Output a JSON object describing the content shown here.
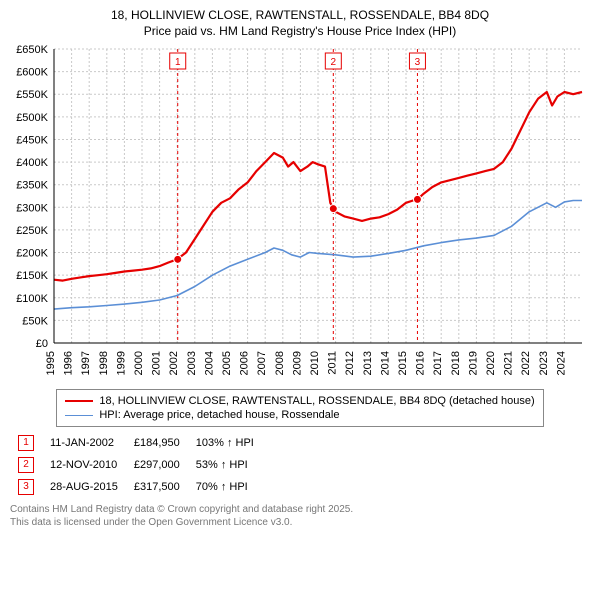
{
  "title_line1": "18, HOLLINVIEW CLOSE, RAWTENSTALL, ROSSENDALE, BB4 8DQ",
  "title_line2": "Price paid vs. HM Land Registry's House Price Index (HPI)",
  "chart": {
    "type": "line",
    "background_color": "#ffffff",
    "grid_color": "#c9c9c9",
    "axis_color": "#000000",
    "label_fontsize": 11,
    "x": {
      "min": 1995,
      "max": 2025,
      "ticks": [
        1995,
        1996,
        1997,
        1998,
        1999,
        2000,
        2001,
        2002,
        2003,
        2004,
        2005,
        2006,
        2007,
        2008,
        2009,
        2010,
        2011,
        2012,
        2013,
        2014,
        2015,
        2016,
        2017,
        2018,
        2019,
        2020,
        2021,
        2022,
        2023,
        2024
      ]
    },
    "y": {
      "min": 0,
      "max": 650000,
      "ticks": [
        0,
        50000,
        100000,
        150000,
        200000,
        250000,
        300000,
        350000,
        400000,
        450000,
        500000,
        550000,
        600000,
        650000
      ],
      "tick_labels": [
        "£0",
        "£50K",
        "£100K",
        "£150K",
        "£200K",
        "£250K",
        "£300K",
        "£350K",
        "£400K",
        "£450K",
        "£500K",
        "£550K",
        "£600K",
        "£650K"
      ]
    },
    "series": [
      {
        "name": "18, HOLLINVIEW CLOSE, RAWTENSTALL, ROSSENDALE, BB4 8DQ (detached house)",
        "color": "#e60000",
        "line_width": 2.2,
        "data": [
          [
            1995,
            140000
          ],
          [
            1995.5,
            138000
          ],
          [
            1996,
            142000
          ],
          [
            1996.5,
            145000
          ],
          [
            1997,
            148000
          ],
          [
            1997.5,
            150000
          ],
          [
            1998,
            152000
          ],
          [
            1998.5,
            155000
          ],
          [
            1999,
            158000
          ],
          [
            1999.5,
            160000
          ],
          [
            2000,
            162000
          ],
          [
            2000.5,
            165000
          ],
          [
            2001,
            170000
          ],
          [
            2001.5,
            178000
          ],
          [
            2002,
            185000
          ],
          [
            2002.5,
            200000
          ],
          [
            2003,
            230000
          ],
          [
            2003.5,
            260000
          ],
          [
            2004,
            290000
          ],
          [
            2004.5,
            310000
          ],
          [
            2005,
            320000
          ],
          [
            2005.5,
            340000
          ],
          [
            2006,
            355000
          ],
          [
            2006.5,
            380000
          ],
          [
            2007,
            400000
          ],
          [
            2007.5,
            420000
          ],
          [
            2008,
            410000
          ],
          [
            2008.3,
            390000
          ],
          [
            2008.6,
            400000
          ],
          [
            2009,
            380000
          ],
          [
            2009.4,
            390000
          ],
          [
            2009.7,
            400000
          ],
          [
            2010,
            395000
          ],
          [
            2010.4,
            390000
          ],
          [
            2010.7,
            310000
          ],
          [
            2010.88,
            297000
          ],
          [
            2011,
            290000
          ],
          [
            2011.5,
            280000
          ],
          [
            2012,
            275000
          ],
          [
            2012.5,
            270000
          ],
          [
            2013,
            275000
          ],
          [
            2013.5,
            278000
          ],
          [
            2014,
            285000
          ],
          [
            2014.5,
            295000
          ],
          [
            2015,
            310000
          ],
          [
            2015.4,
            315000
          ],
          [
            2015.65,
            317500
          ],
          [
            2016,
            330000
          ],
          [
            2016.5,
            345000
          ],
          [
            2017,
            355000
          ],
          [
            2017.5,
            360000
          ],
          [
            2018,
            365000
          ],
          [
            2018.5,
            370000
          ],
          [
            2019,
            375000
          ],
          [
            2019.5,
            380000
          ],
          [
            2020,
            385000
          ],
          [
            2020.5,
            400000
          ],
          [
            2021,
            430000
          ],
          [
            2021.5,
            470000
          ],
          [
            2022,
            510000
          ],
          [
            2022.5,
            540000
          ],
          [
            2023,
            555000
          ],
          [
            2023.3,
            525000
          ],
          [
            2023.6,
            545000
          ],
          [
            2024,
            555000
          ],
          [
            2024.5,
            550000
          ],
          [
            2025,
            555000
          ]
        ]
      },
      {
        "name": "HPI: Average price, detached house, Rossendale",
        "color": "#5b8fd6",
        "line_width": 1.6,
        "data": [
          [
            1995,
            75000
          ],
          [
            1996,
            78000
          ],
          [
            1997,
            80000
          ],
          [
            1998,
            83000
          ],
          [
            1999,
            86000
          ],
          [
            2000,
            90000
          ],
          [
            2001,
            95000
          ],
          [
            2002,
            105000
          ],
          [
            2003,
            125000
          ],
          [
            2004,
            150000
          ],
          [
            2005,
            170000
          ],
          [
            2006,
            185000
          ],
          [
            2007,
            200000
          ],
          [
            2007.5,
            210000
          ],
          [
            2008,
            205000
          ],
          [
            2008.5,
            195000
          ],
          [
            2009,
            190000
          ],
          [
            2009.5,
            200000
          ],
          [
            2010,
            198000
          ],
          [
            2011,
            195000
          ],
          [
            2012,
            190000
          ],
          [
            2013,
            192000
          ],
          [
            2014,
            198000
          ],
          [
            2015,
            205000
          ],
          [
            2016,
            215000
          ],
          [
            2017,
            222000
          ],
          [
            2018,
            228000
          ],
          [
            2019,
            232000
          ],
          [
            2020,
            238000
          ],
          [
            2021,
            258000
          ],
          [
            2022,
            290000
          ],
          [
            2023,
            310000
          ],
          [
            2023.5,
            300000
          ],
          [
            2024,
            312000
          ],
          [
            2024.5,
            315000
          ],
          [
            2025,
            315000
          ]
        ]
      }
    ],
    "events": [
      {
        "n": "1",
        "x": 2002.03,
        "color": "#e60000"
      },
      {
        "n": "2",
        "x": 2010.87,
        "color": "#e60000"
      },
      {
        "n": "3",
        "x": 2015.65,
        "color": "#e60000"
      }
    ],
    "event_points": [
      {
        "x": 2002.03,
        "y": 185000,
        "color": "#e60000"
      },
      {
        "x": 2010.87,
        "y": 297000,
        "color": "#e60000"
      },
      {
        "x": 2015.65,
        "y": 317500,
        "color": "#e60000"
      }
    ]
  },
  "legend": [
    {
      "label": "18, HOLLINVIEW CLOSE, RAWTENSTALL, ROSSENDALE, BB4 8DQ (detached house)",
      "color": "#e60000",
      "width": 2.2
    },
    {
      "label": "HPI: Average price, detached house, Rossendale",
      "color": "#5b8fd6",
      "width": 1.6
    }
  ],
  "events_table": [
    {
      "n": "1",
      "date": "11-JAN-2002",
      "price": "£184,950",
      "delta": "103% ↑ HPI",
      "color": "#e60000"
    },
    {
      "n": "2",
      "date": "12-NOV-2010",
      "price": "£297,000",
      "delta": "53% ↑ HPI",
      "color": "#e60000"
    },
    {
      "n": "3",
      "date": "28-AUG-2015",
      "price": "£317,500",
      "delta": "70% ↑ HPI",
      "color": "#e60000"
    }
  ],
  "footer_line1": "Contains HM Land Registry data © Crown copyright and database right 2025.",
  "footer_line2": "This data is licensed under the Open Government Licence v3.0."
}
